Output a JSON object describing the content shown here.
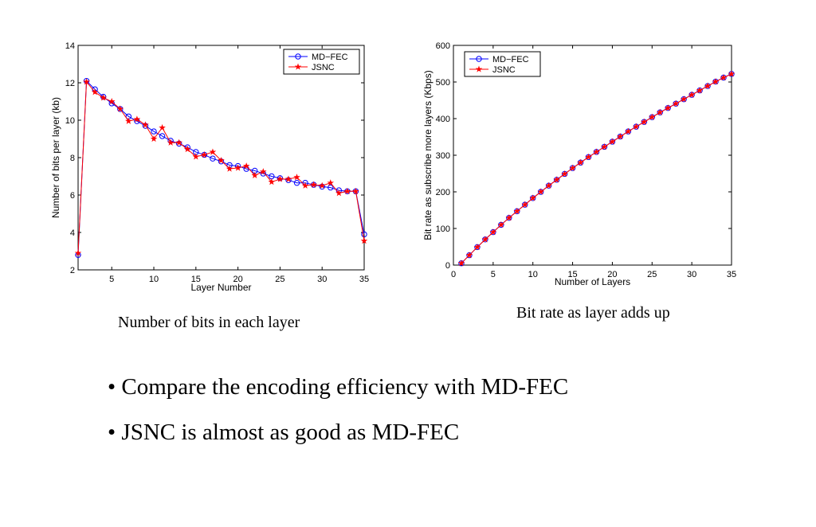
{
  "chart_data": [
    {
      "type": "line",
      "title": "",
      "xlabel": "Layer Number",
      "ylabel": "Number of bits per layer (kb)",
      "xlim": [
        1,
        35
      ],
      "ylim": [
        2,
        14
      ],
      "xticks": [
        5,
        10,
        15,
        20,
        25,
        30,
        35
      ],
      "yticks": [
        2,
        4,
        6,
        8,
        10,
        12,
        14
      ],
      "grid": false,
      "legend_position": "top-right",
      "x": [
        1,
        2,
        3,
        4,
        5,
        6,
        7,
        8,
        9,
        10,
        11,
        12,
        13,
        14,
        15,
        16,
        17,
        18,
        19,
        20,
        21,
        22,
        23,
        24,
        25,
        26,
        27,
        28,
        29,
        30,
        31,
        32,
        33,
        34,
        35
      ],
      "series": [
        {
          "name": "MD−FEC",
          "color": "#0000ff",
          "marker": "circle",
          "values": [
            2.8,
            12.1,
            11.65,
            11.25,
            10.9,
            10.6,
            10.2,
            9.95,
            9.7,
            9.4,
            9.15,
            8.9,
            8.75,
            8.55,
            8.3,
            8.15,
            7.95,
            7.8,
            7.6,
            7.55,
            7.4,
            7.3,
            7.15,
            7.0,
            6.9,
            6.8,
            6.65,
            6.65,
            6.55,
            6.45,
            6.4,
            6.25,
            6.2,
            6.2,
            3.9
          ]
        },
        {
          "name": "JSNC",
          "color": "#ff0000",
          "marker": "star",
          "values": [
            2.9,
            12.05,
            11.5,
            11.2,
            11.0,
            10.6,
            9.95,
            10.05,
            9.75,
            9.0,
            9.6,
            8.8,
            8.8,
            8.45,
            8.05,
            8.15,
            8.3,
            7.85,
            7.4,
            7.45,
            7.55,
            7.05,
            7.25,
            6.7,
            6.85,
            6.85,
            6.95,
            6.5,
            6.55,
            6.5,
            6.65,
            6.1,
            6.2,
            6.2,
            3.55
          ]
        }
      ]
    },
    {
      "type": "line",
      "title": "",
      "xlabel": "Number of Layers",
      "ylabel": "Bit rate as subscribe more layers (Kbps)",
      "xlim": [
        0,
        35
      ],
      "ylim": [
        0,
        600
      ],
      "xticks": [
        0,
        5,
        10,
        15,
        20,
        25,
        30,
        35
      ],
      "yticks": [
        0,
        100,
        200,
        300,
        400,
        500,
        600
      ],
      "grid": false,
      "legend_position": "top-left",
      "x": [
        1,
        2,
        3,
        4,
        5,
        6,
        7,
        8,
        9,
        10,
        11,
        12,
        13,
        14,
        15,
        16,
        17,
        18,
        19,
        20,
        21,
        22,
        23,
        24,
        25,
        26,
        27,
        28,
        29,
        30,
        31,
        32,
        33,
        34,
        35
      ],
      "series": [
        {
          "name": "MD−FEC",
          "color": "#0000ff",
          "marker": "circle",
          "values": [
            5,
            27,
            49,
            70,
            90,
            110,
            129,
            147,
            165,
            183,
            200,
            217,
            233,
            249,
            265,
            280,
            295,
            309,
            323,
            337,
            351,
            365,
            378,
            391,
            404,
            417,
            429,
            441,
            453,
            465,
            477,
            489,
            501,
            512,
            522
          ]
        },
        {
          "name": "JSNC",
          "color": "#ff0000",
          "marker": "star",
          "values": [
            5,
            27,
            49,
            70,
            90,
            110,
            129,
            147,
            165,
            183,
            200,
            217,
            233,
            249,
            265,
            280,
            295,
            309,
            323,
            337,
            351,
            365,
            378,
            391,
            404,
            417,
            429,
            441,
            453,
            465,
            477,
            489,
            501,
            512,
            522
          ]
        }
      ]
    }
  ],
  "captions": {
    "left": "Number of bits in each layer",
    "right": "Bit rate as layer adds up"
  },
  "bullets": [
    "• Compare the encoding efficiency with MD-FEC",
    "• JSNC is almost as good as MD-FEC"
  ]
}
